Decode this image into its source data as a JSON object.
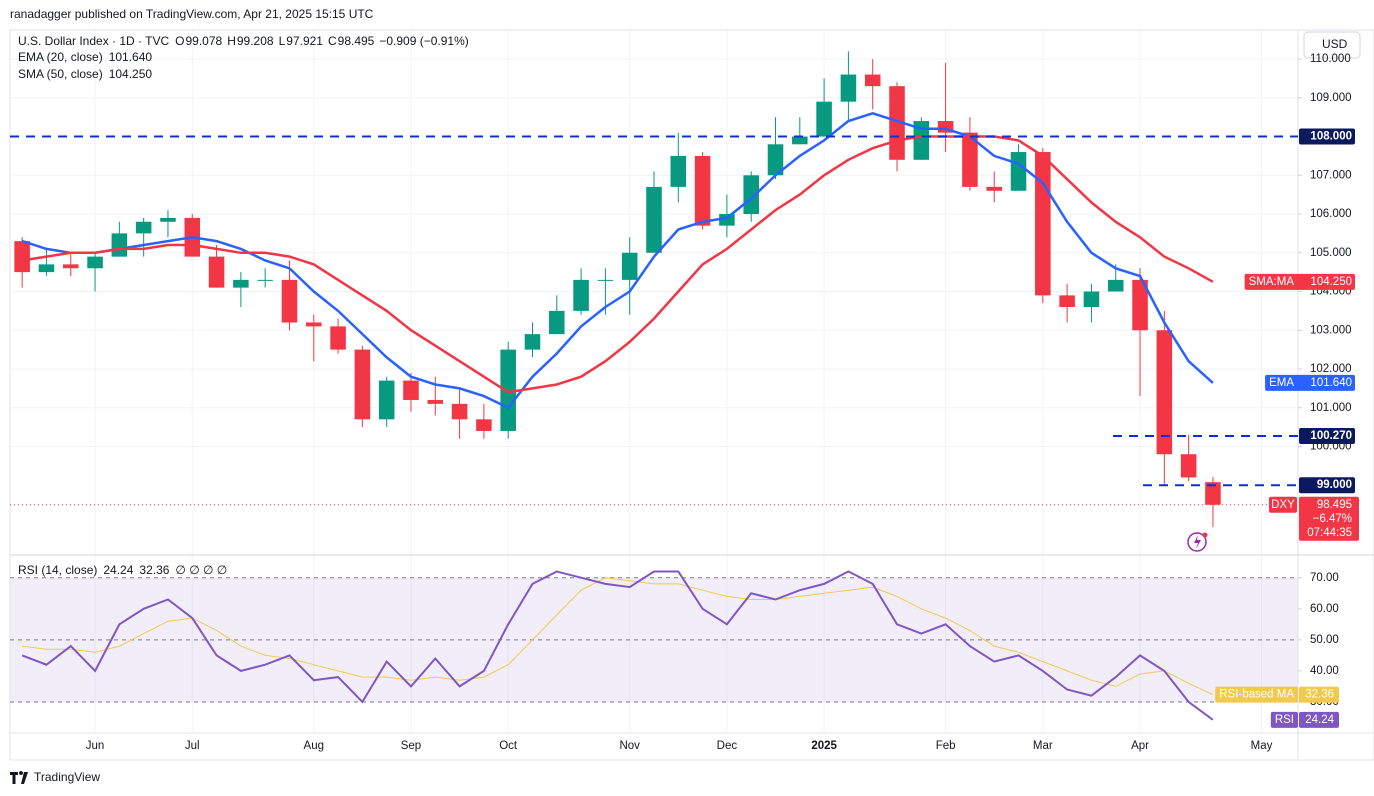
{
  "header": {
    "publisher": "ranadagger published on TradingView.com, Apr 21, 2025 15:15 UTC"
  },
  "footer": {
    "brand": "TradingView"
  },
  "chart_data": [
    {
      "type": "candlestick",
      "title": "U.S. Dollar Index · 1D · TVC",
      "currency": "USD",
      "ohlc_legend": [
        {
          "label": "O",
          "value": 99.078
        },
        {
          "label": "H",
          "value": 99.208
        },
        {
          "label": "L",
          "value": 97.921
        },
        {
          "label": "C",
          "value": 98.495
        }
      ],
      "change": "−0.909 (−0.91%)",
      "up_color": "#089981",
      "down_color": "#f23645",
      "categories": [
        null,
        null,
        null,
        "Jun",
        null,
        null,
        null,
        "Jul",
        null,
        null,
        null,
        null,
        "Aug",
        null,
        null,
        null,
        "Sep",
        null,
        null,
        null,
        "Oct",
        null,
        null,
        null,
        null,
        "Nov",
        null,
        null,
        null,
        "Dec",
        null,
        null,
        null,
        "2025",
        null,
        null,
        null,
        null,
        "Feb",
        null,
        null,
        null,
        "Mar",
        null,
        null,
        null,
        "Apr",
        null,
        null,
        null,
        null,
        "May",
        null
      ],
      "candles": {
        "open": [
          105.3,
          104.5,
          104.7,
          104.6,
          104.9,
          105.5,
          105.8,
          105.9,
          104.9,
          104.1,
          104.3,
          104.3,
          103.2,
          103.1,
          102.5,
          100.7,
          101.7,
          101.2,
          101.1,
          100.7,
          100.4,
          102.5,
          102.9,
          103.5,
          104.3,
          104.3,
          105.0,
          106.7,
          107.5,
          105.7,
          106.0,
          107.0,
          107.8,
          108.0,
          108.9,
          109.6,
          109.3,
          107.4,
          108.4,
          108.1,
          106.7,
          106.6,
          107.6,
          103.9,
          103.6,
          104.0,
          104.3,
          103.0,
          99.8,
          99.078,
          null,
          null,
          null
        ],
        "high": [
          105.4,
          105.1,
          105.0,
          105.0,
          105.8,
          105.9,
          106.1,
          106.0,
          105.2,
          104.5,
          104.6,
          104.8,
          103.4,
          103.3,
          102.6,
          101.8,
          101.9,
          101.8,
          101.5,
          101.1,
          102.7,
          103.2,
          103.9,
          104.6,
          104.6,
          105.4,
          107.1,
          108.1,
          107.6,
          106.5,
          107.1,
          108.5,
          108.5,
          109.5,
          110.2,
          110.0,
          109.4,
          108.5,
          109.9,
          108.5,
          107.1,
          107.8,
          107.7,
          104.2,
          104.2,
          104.7,
          104.6,
          103.5,
          100.3,
          99.208,
          null,
          null,
          null
        ],
        "low": [
          104.1,
          104.4,
          104.4,
          104.0,
          104.9,
          104.9,
          105.4,
          104.9,
          104.1,
          103.6,
          104.1,
          103.0,
          102.2,
          102.4,
          100.5,
          100.5,
          100.9,
          100.8,
          100.2,
          100.2,
          100.2,
          102.3,
          102.9,
          103.4,
          103.4,
          103.4,
          105.0,
          106.3,
          105.6,
          105.4,
          105.8,
          106.9,
          107.8,
          108.0,
          108.4,
          108.7,
          107.1,
          107.4,
          107.6,
          106.6,
          106.3,
          106.6,
          103.7,
          103.2,
          103.2,
          104.0,
          101.3,
          99.0,
          99.1,
          97.921,
          null,
          null,
          null
        ],
        "close": [
          104.5,
          104.7,
          104.6,
          104.9,
          105.5,
          105.8,
          105.9,
          104.9,
          104.1,
          104.3,
          104.3,
          103.2,
          103.1,
          102.5,
          100.7,
          101.7,
          101.2,
          101.1,
          100.7,
          100.4,
          102.5,
          102.9,
          103.5,
          104.3,
          104.3,
          105.0,
          106.7,
          107.5,
          105.7,
          106.0,
          107.0,
          107.8,
          108.0,
          108.9,
          109.6,
          109.3,
          107.4,
          108.4,
          108.1,
          106.7,
          106.6,
          107.6,
          103.9,
          103.6,
          104.0,
          104.3,
          103.0,
          99.8,
          99.2,
          98.495,
          null,
          null,
          null
        ]
      },
      "series": [
        {
          "name": "EMA (20, close)",
          "tag": "EMA",
          "color": "#2962ff",
          "last": {
            "value": 101.64,
            "label": "101.640"
          },
          "values": [
            105.3,
            105.1,
            105.0,
            105.0,
            105.1,
            105.2,
            105.3,
            105.4,
            105.3,
            105.1,
            104.8,
            104.6,
            104.0,
            103.5,
            102.9,
            102.3,
            101.8,
            101.6,
            101.5,
            101.3,
            101.0,
            101.8,
            102.4,
            103.1,
            103.6,
            104.0,
            104.9,
            105.6,
            105.8,
            105.9,
            106.4,
            107.0,
            107.5,
            107.9,
            108.4,
            108.6,
            108.4,
            108.2,
            108.2,
            108.0,
            107.5,
            107.3,
            106.8,
            105.8,
            105.0,
            104.6,
            104.4,
            103.2,
            102.2,
            101.64,
            null,
            null,
            null
          ]
        },
        {
          "name": "SMA (50, close)",
          "tag": "SMA:MA",
          "color": "#f23645",
          "last": {
            "value": 104.25,
            "label": "104.250"
          },
          "values": [
            104.8,
            104.9,
            105.0,
            105.0,
            105.1,
            105.1,
            105.2,
            105.2,
            105.1,
            105.0,
            105.0,
            104.9,
            104.7,
            104.3,
            103.9,
            103.5,
            103.0,
            102.6,
            102.2,
            101.8,
            101.4,
            101.5,
            101.6,
            101.8,
            102.2,
            102.7,
            103.3,
            104.0,
            104.7,
            105.1,
            105.6,
            106.1,
            106.5,
            107.0,
            107.4,
            107.7,
            107.9,
            108.0,
            108.0,
            108.0,
            108.0,
            107.9,
            107.5,
            106.9,
            106.3,
            105.8,
            105.4,
            104.9,
            104.6,
            104.25,
            null,
            null,
            null
          ]
        }
      ],
      "levels": [
        {
          "value": 108,
          "label": "108.000"
        },
        {
          "value": 100.27,
          "label": "100.270"
        },
        {
          "value": 99,
          "label": "99.000"
        }
      ],
      "level_color": "#0c2fd8",
      "last_price": {
        "name": "DXY",
        "value": 98.495,
        "change": "−6.47%",
        "countdown": "07:44:35"
      },
      "ylim": [
        97.25,
        110.75
      ],
      "yticks": [
        {
          "value": 100,
          "label": "100.000"
        },
        {
          "value": 101,
          "label": "101.000"
        },
        {
          "value": 102,
          "label": "102.000"
        },
        {
          "value": 103,
          "label": "103.000"
        },
        {
          "value": 104,
          "label": "104.000"
        },
        {
          "value": 105,
          "label": "105.000"
        },
        {
          "value": 106,
          "label": "106.000"
        },
        {
          "value": 107,
          "label": "107.000"
        },
        {
          "value": 109,
          "label": "109.000"
        },
        {
          "value": 110,
          "label": "110.000"
        }
      ],
      "grid": true
    },
    {
      "type": "line",
      "title": "RSI (14, close)",
      "extra": "∅ ∅ ∅ ∅",
      "series": [
        {
          "name": "RSI",
          "color": "#7e57c2",
          "values": [
            45,
            42,
            48,
            40,
            55,
            60,
            63,
            57,
            45,
            40,
            42,
            45,
            37,
            38,
            30,
            43,
            35,
            44,
            35,
            40,
            55,
            68,
            72,
            70,
            68,
            67,
            72,
            72,
            60,
            55,
            65,
            63,
            66,
            68,
            72,
            68,
            55,
            52,
            55,
            48,
            43,
            45,
            40,
            34,
            32,
            38,
            45,
            40,
            30,
            24.24,
            null,
            null,
            null
          ]
        },
        {
          "name": "RSI-based MA",
          "color": "#f2c94c",
          "values": [
            48,
            47,
            47,
            46,
            48,
            52,
            56,
            57,
            53,
            48,
            45,
            44,
            42,
            40,
            38,
            38,
            37,
            38,
            37,
            38,
            42,
            50,
            58,
            66,
            70,
            69,
            68,
            68,
            66,
            64,
            63,
            63,
            64,
            65,
            66,
            67,
            64,
            60,
            57,
            53,
            48,
            46,
            43,
            40,
            37,
            35,
            39,
            40,
            36,
            32.36,
            null,
            null,
            null
          ]
        }
      ],
      "levels": [
        70,
        50,
        30
      ],
      "ylim": [
        20,
        77
      ],
      "yticks": [
        {
          "value": 30,
          "label": "30.00"
        },
        {
          "value": 40,
          "label": "40.00"
        },
        {
          "value": 50,
          "label": "50.00"
        },
        {
          "value": 60,
          "label": "60.00"
        },
        {
          "value": 70,
          "label": "70.00"
        }
      ]
    }
  ]
}
